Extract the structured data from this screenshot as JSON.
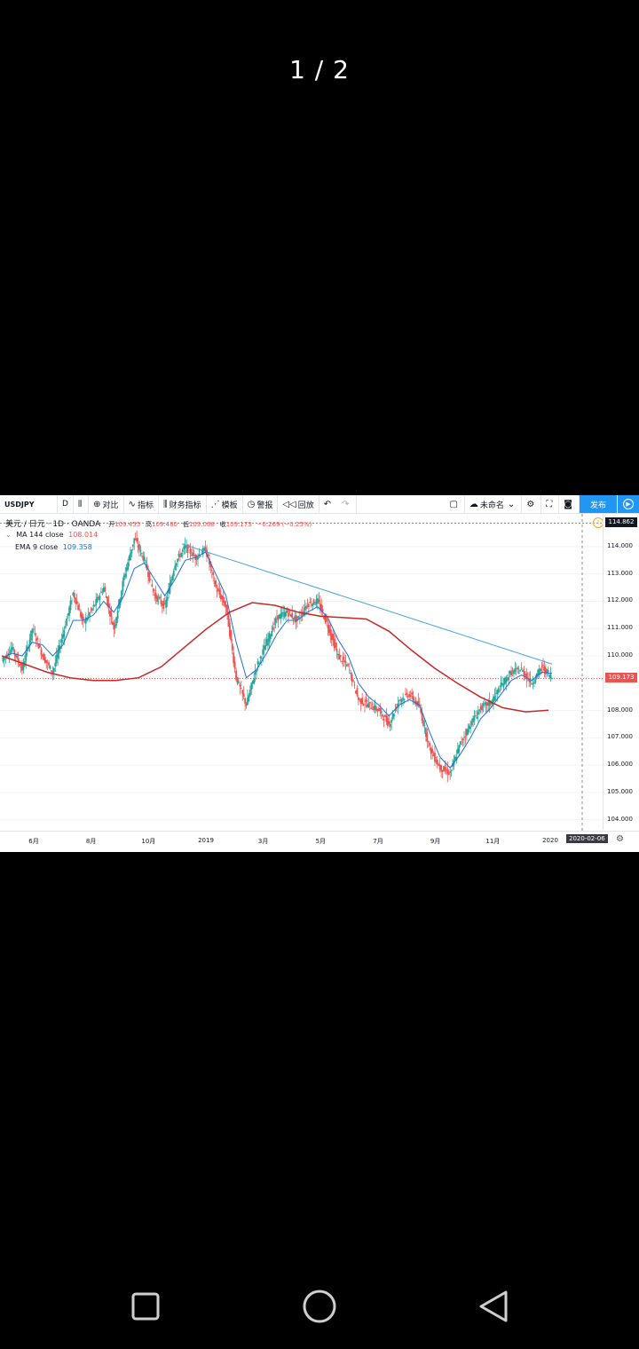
{
  "viewer": {
    "page_counter": "1 / 2"
  },
  "toolbar": {
    "symbol": "USDJPY",
    "interval": "D",
    "compare": "对比",
    "indicators": "指标",
    "financials": "财务指标",
    "templates": "模板",
    "alert": "警报",
    "replay": "回放",
    "layout_name": "未命名",
    "publish": "发布"
  },
  "legend": {
    "title": "美元 / 日元 · 1D · OANDA",
    "open_label": "开",
    "open": "109.455",
    "high_label": "高",
    "high": "109.480",
    "low_label": "低",
    "low": "109.068",
    "close_label": "收",
    "close": "109.173",
    "change": "−0.269 (−0.25%)",
    "ma_label": "MA 144 close",
    "ma_value": "108.014",
    "ema_label": "EMA 9 close",
    "ema_value": "109.358"
  },
  "chart_data": {
    "type": "candlestick",
    "symbol": "USDJPY",
    "y_ticks": [
      "114.000",
      "113.000",
      "112.000",
      "111.000",
      "110.000",
      "108.000",
      "107.000",
      "106.000",
      "105.000",
      "104.000"
    ],
    "ylim": [
      103.6,
      115.2
    ],
    "x_ticks": [
      "6月",
      "8月",
      "10月",
      "2019",
      "3月",
      "5月",
      "7月",
      "9月",
      "11月",
      "2020"
    ],
    "current_price": "109.173",
    "high_marker": "114.862",
    "cursor_date": "2020-02-06",
    "closes": [
      109.8,
      110.3,
      109.5,
      111.0,
      110.0,
      109.4,
      110.8,
      112.3,
      111.2,
      111.8,
      112.5,
      111.0,
      112.9,
      114.3,
      113.5,
      112.2,
      111.8,
      113.4,
      114.0,
      113.6,
      113.9,
      112.5,
      111.8,
      109.2,
      108.2,
      109.6,
      110.5,
      111.4,
      111.6,
      111.3,
      111.9,
      112.0,
      111.1,
      110.0,
      109.6,
      108.4,
      108.2,
      108.0,
      107.5,
      108.4,
      108.6,
      108.1,
      106.6,
      105.9,
      105.7,
      106.8,
      107.5,
      108.1,
      108.3,
      108.9,
      109.4,
      109.5,
      109.0,
      109.6,
      109.2
    ],
    "ema9": [
      109.9,
      110.1,
      110.0,
      110.5,
      110.4,
      110.0,
      110.4,
      111.3,
      111.3,
      111.5,
      112.0,
      111.6,
      112.2,
      113.2,
      113.4,
      112.8,
      112.2,
      112.8,
      113.5,
      113.6,
      113.8,
      113.0,
      112.2,
      110.5,
      109.2,
      109.5,
      110.1,
      110.8,
      111.3,
      111.3,
      111.6,
      111.8,
      111.4,
      110.6,
      110.0,
      109.0,
      108.5,
      108.2,
      107.8,
      108.2,
      108.4,
      108.2,
      107.2,
      106.3,
      105.9,
      106.4,
      107.0,
      107.7,
      108.1,
      108.6,
      109.1,
      109.3,
      109.1,
      109.4,
      109.36
    ],
    "ma144": [
      110.0,
      109.7,
      109.4,
      109.2,
      109.1,
      109.1,
      109.2,
      109.6,
      110.3,
      111.0,
      111.6,
      111.95,
      111.85,
      111.6,
      111.45,
      111.4,
      111.35,
      110.9,
      110.2,
      109.55,
      109.0,
      108.5,
      108.1,
      107.95,
      108.01
    ],
    "trendline": {
      "from": [
        "2018-11",
        114.1
      ],
      "to": [
        "2020-01",
        109.7
      ]
    }
  }
}
